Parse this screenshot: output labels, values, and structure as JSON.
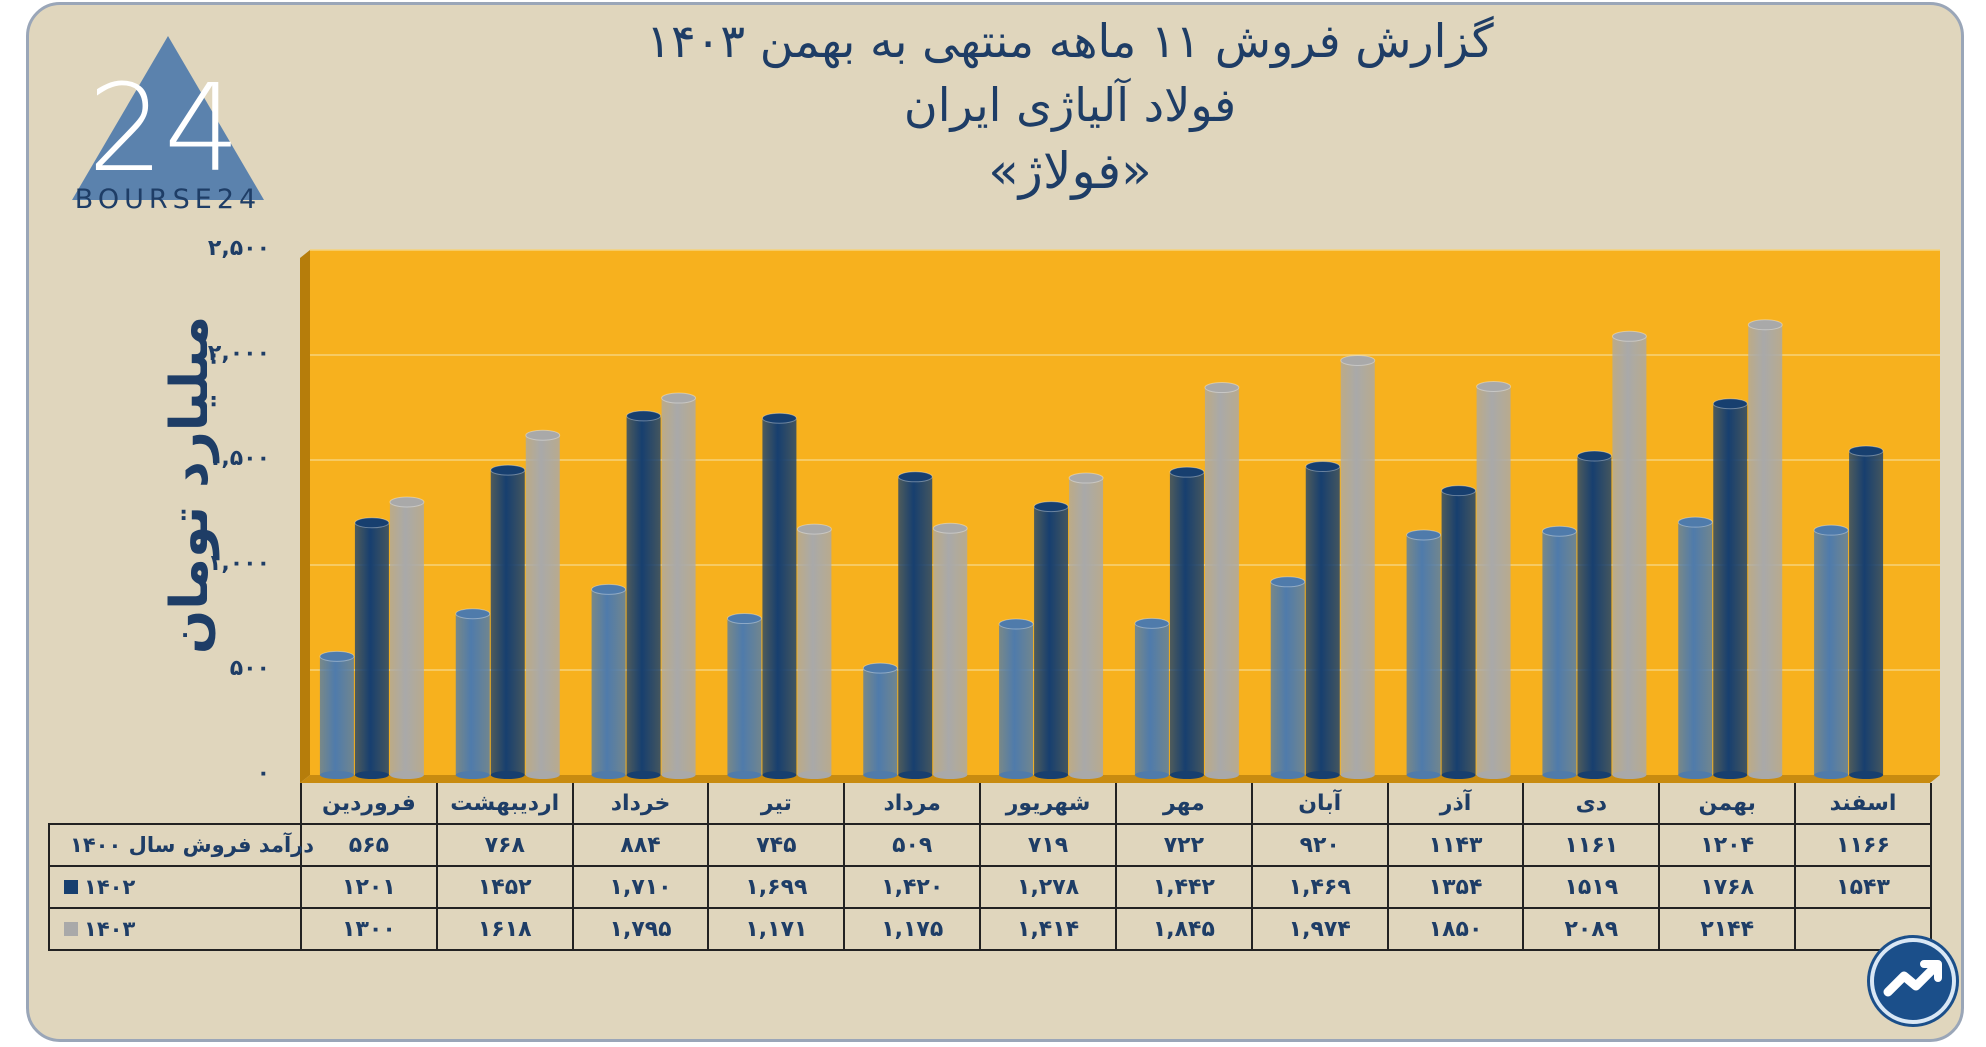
{
  "header": {
    "line1": "گزارش  فروش ۱۱ ماهه منتهی به بهمن ۱۴۰۳",
    "line2": "فولاد آلیاژی ایران",
    "line3": "«فولاژ»"
  },
  "logo": {
    "text": "BOURSE24",
    "mark": "24"
  },
  "colors": {
    "s1400": "#4f7bab",
    "s1402": "#173f6f",
    "s1403": "#a9a9a9",
    "plot_bg": "#f7b11e",
    "frame_bg": "#e0d6bd",
    "text": "#1e3d66"
  },
  "chart_data": {
    "type": "bar",
    "ylabel": "میلیارد تومان",
    "ylim": [
      0,
      2500
    ],
    "yticks": [
      "۰",
      "۵۰۰",
      "۱,۰۰۰",
      "۱,۵۰۰",
      "۲,۰۰۰",
      "۲,۵۰۰"
    ],
    "ytick_values": [
      0,
      500,
      1000,
      1500,
      2000,
      2500
    ],
    "grid": true,
    "categories": [
      "فروردین",
      "اردیبهشت",
      "خرداد",
      "تیر",
      "مرداد",
      "شهریور",
      "مهر",
      "آبان",
      "آذر",
      "دی",
      "بهمن",
      "اسفند"
    ],
    "series": [
      {
        "name": "درآمد فروش سال ۱۴۰۰",
        "values": [
          565,
          768,
          884,
          745,
          509,
          719,
          722,
          920,
          1143,
          1161,
          1204,
          1166
        ],
        "labels": [
          "۵۶۵",
          "۷۶۸",
          "۸۸۴",
          "۷۴۵",
          "۵۰۹",
          "۷۱۹",
          "۷۲۲",
          "۹۲۰",
          "۱۱۴۳",
          "۱۱۶۱",
          "۱۲۰۴",
          "۱۱۶۶"
        ]
      },
      {
        "name": "۱۴۰۲",
        "values": [
          1201,
          1452,
          1710,
          1699,
          1420,
          1278,
          1442,
          1469,
          1354,
          1519,
          1768,
          1543
        ],
        "labels": [
          "۱۲۰۱",
          "۱۴۵۲",
          "۱,۷۱۰",
          "۱,۶۹۹",
          "۱,۴۲۰",
          "۱,۲۷۸",
          "۱,۴۴۲",
          "۱,۴۶۹",
          "۱۳۵۴",
          "۱۵۱۹",
          "۱۷۶۸",
          "۱۵۴۳"
        ]
      },
      {
        "name": "۱۴۰۳",
        "values": [
          1300,
          1618,
          1795,
          1171,
          1175,
          1414,
          1845,
          1974,
          1850,
          2089,
          2144,
          null
        ],
        "labels": [
          "۱۳۰۰",
          "۱۶۱۸",
          "۱,۷۹۵",
          "۱,۱۷۱",
          "۱,۱۷۵",
          "۱,۴۱۴",
          "۱,۸۴۵",
          "۱,۹۷۴",
          "۱۸۵۰",
          "۲۰۸۹",
          "۲۱۴۴",
          ""
        ]
      }
    ]
  }
}
